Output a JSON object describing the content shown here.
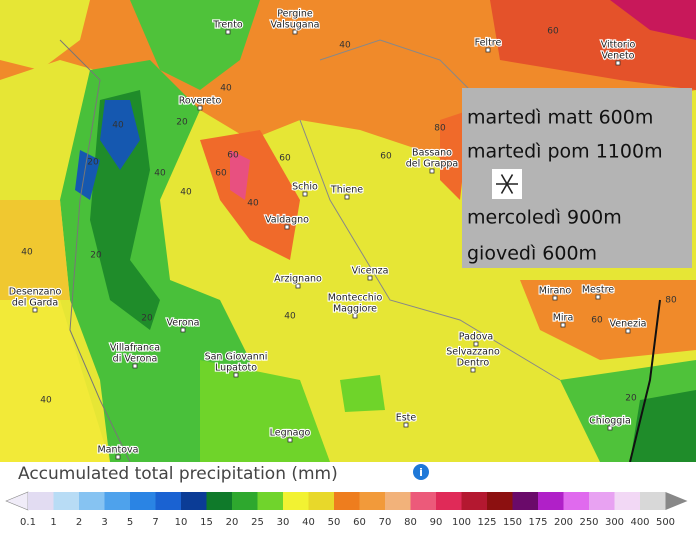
{
  "cities": [
    [
      "Trento"
    ],
    [
      "Pergine",
      "Valsugana"
    ],
    [
      "Rovereto"
    ],
    [
      "Feltre"
    ],
    [
      "Vittorio",
      "Veneto"
    ],
    [
      "Bassano",
      "del Grappa"
    ],
    [
      "Schio"
    ],
    [
      "Thiene"
    ],
    [
      "Valdagno"
    ],
    [
      "Arzignano"
    ],
    [
      "Vicenza"
    ],
    [
      "Montecchio",
      "Maggiore"
    ],
    [
      "Desenzano",
      "del Garda"
    ],
    [
      "Verona"
    ],
    [
      "Villafranca",
      "di Verona"
    ],
    [
      "San Giovanni",
      "Lupatoto"
    ],
    [
      "Mirano"
    ],
    [
      "Mestre"
    ],
    [
      "Mira"
    ],
    [
      "Venezia"
    ],
    [
      "Padova"
    ],
    [
      "Selvazzano",
      "Dentro"
    ],
    [
      "Este"
    ],
    [
      "Legnago"
    ],
    [
      "Chioggia"
    ],
    [
      "Mantova"
    ]
  ],
  "contour_labels": [
    40,
    40,
    20,
    40,
    20,
    40,
    60,
    20,
    40,
    60,
    60,
    60,
    60,
    80,
    40,
    20,
    40,
    40,
    20,
    60,
    80,
    40
  ],
  "note": {
    "lines": [
      "martedì matt 600m",
      "martedì pom 1100m",
      "mercoledì 900m",
      "giovedì 600m"
    ]
  },
  "legend": {
    "title": "Accumulated total precipitation (mm)",
    "ticks": [
      0.1,
      1,
      2,
      3,
      5,
      7,
      10,
      15,
      20,
      25,
      30,
      40,
      50,
      60,
      70,
      80,
      90,
      100,
      125,
      150,
      175,
      200,
      250,
      300,
      400,
      500
    ]
  }
}
